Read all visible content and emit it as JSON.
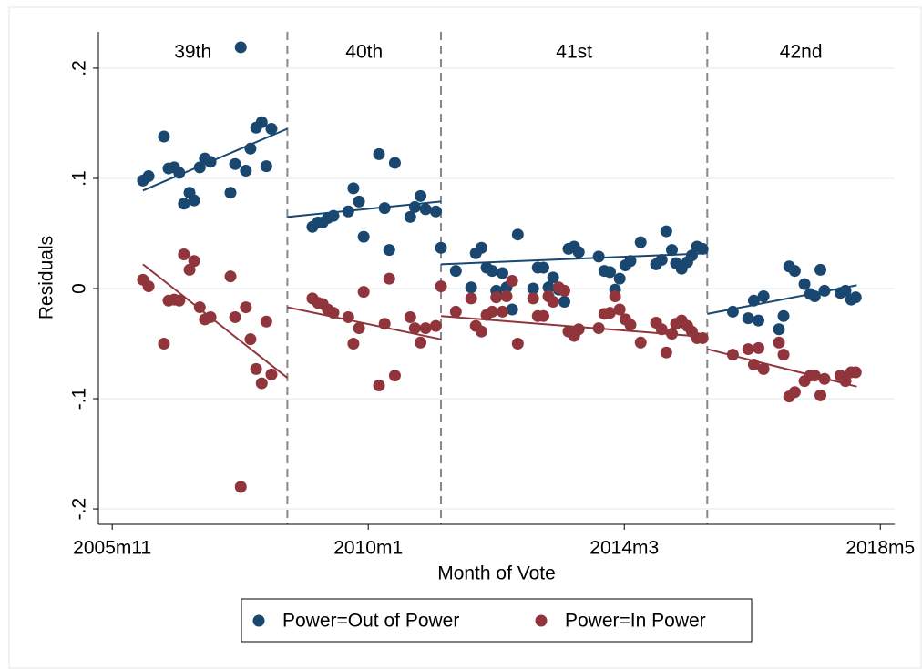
{
  "chart_data": {
    "type": "scatter",
    "x_label": "Month of Vote",
    "y_label": "Residuals",
    "xlim": [
      547.3,
      702.8
    ],
    "ylim": [
      -0.214,
      0.233
    ],
    "xticks": [
      {
        "value": 550,
        "label": "2005m11"
      },
      {
        "value": 600,
        "label": "2010m1"
      },
      {
        "value": 650,
        "label": "2014m3"
      },
      {
        "value": 700,
        "label": "2018m5"
      }
    ],
    "yticks": [
      {
        "value": -0.2,
        "label": "-.2"
      },
      {
        "value": -0.1,
        "label": "-.1"
      },
      0,
      {
        "value": 0.1,
        "label": ".1"
      },
      {
        "value": 0.2,
        "label": ".2"
      }
    ],
    "grid": true,
    "dividers": [
      584.2,
      614.2,
      666.2
    ],
    "periods": [
      "39th",
      "40th",
      "41st",
      "42nd"
    ],
    "legend": "bottom",
    "series": [
      {
        "name": "Power=Out of Power",
        "color": "#1a476f",
        "x": [
          556.0,
          557.1,
          560.1,
          561.0,
          562.1,
          563.1,
          564.0,
          565.1,
          566.0,
          567.1,
          568.1,
          569.2,
          573.1,
          574.0,
          575.1,
          576.1,
          577.0,
          578.1,
          579.2,
          580.1,
          581.1,
          589.1,
          590.2,
          591.1,
          592.1,
          593.2,
          596.1,
          597.1,
          598.2,
          599.1,
          602.1,
          603.2,
          604.1,
          605.2,
          608.2,
          609.1,
          610.2,
          611.2,
          613.2,
          614.2,
          617.1,
          620.1,
          621.0,
          622.1,
          623.1,
          624.2,
          625.0,
          626.2,
          627.0,
          628.1,
          629.2,
          632.2,
          633.1,
          634.2,
          635.2,
          636.1,
          637.2,
          638.3,
          639.1,
          640.2,
          641.1,
          645.0,
          646.1,
          647.2,
          648.2,
          649.1,
          650.2,
          651.2,
          653.2,
          656.2,
          657.3,
          658.2,
          659.3,
          660.1,
          661.2,
          662.3,
          663.2,
          664.2,
          665.3,
          671.2,
          674.2,
          675.3,
          676.2,
          677.2,
          680.2,
          681.1,
          682.2,
          683.3,
          685.2,
          686.3,
          687.2,
          688.3,
          689.1,
          692.2,
          693.2,
          694.3,
          695.2
        ],
        "values": [
          0.098,
          0.102,
          0.138,
          0.109,
          0.11,
          0.105,
          0.077,
          0.087,
          0.08,
          0.11,
          0.118,
          0.115,
          0.087,
          0.113,
          0.219,
          0.107,
          0.127,
          0.146,
          0.151,
          0.111,
          0.145,
          0.056,
          0.06,
          0.06,
          0.064,
          0.066,
          0.07,
          0.091,
          0.079,
          0.047,
          0.122,
          0.073,
          0.035,
          0.114,
          0.065,
          0.074,
          0.084,
          0.072,
          0.07,
          0.037,
          0.016,
          0.001,
          0.032,
          0.037,
          0.019,
          0.016,
          -0.002,
          0.014,
          0.001,
          -0.019,
          0.049,
          0,
          0.019,
          0.019,
          0.001,
          0.01,
          -0.001,
          -0.012,
          0.036,
          0.038,
          0.033,
          0.029,
          0.016,
          0.015,
          -0.001,
          0.009,
          0.021,
          0.025,
          0.042,
          0.022,
          0.026,
          0.052,
          0.035,
          0.023,
          0.018,
          0.024,
          0.03,
          0.038,
          0.036,
          -0.021,
          -0.027,
          -0.011,
          -0.029,
          -0.007,
          -0.037,
          -0.025,
          0.02,
          0.016,
          0.004,
          -0.005,
          -0.007,
          0.017,
          -0.002,
          -0.004,
          -0.002,
          -0.01,
          -0.008
        ],
        "fits": [
          {
            "x": [
              556.0,
              584.2
            ],
            "y": [
              0.089,
              0.145
            ]
          },
          {
            "x": [
              584.2,
              614.2
            ],
            "y": [
              0.065,
              0.079
            ]
          },
          {
            "x": [
              614.2,
              666.2
            ],
            "y": [
              0.022,
              0.032
            ]
          },
          {
            "x": [
              666.2,
              695.4
            ],
            "y": [
              -0.023,
              0.003
            ]
          }
        ]
      },
      {
        "name": "Power=In Power",
        "color": "#90353b",
        "x": [
          556.0,
          557.1,
          560.1,
          561.0,
          562.1,
          563.1,
          564.0,
          565.1,
          566.0,
          567.1,
          568.1,
          569.2,
          573.1,
          574.0,
          575.1,
          576.1,
          577.0,
          578.1,
          579.2,
          580.1,
          581.1,
          589.1,
          590.2,
          591.1,
          592.1,
          593.2,
          596.1,
          597.1,
          598.2,
          599.1,
          602.1,
          603.2,
          604.1,
          605.2,
          608.2,
          609.1,
          610.2,
          611.2,
          613.2,
          614.2,
          617.1,
          620.1,
          621.0,
          622.1,
          623.1,
          624.2,
          625.0,
          626.2,
          627.0,
          628.1,
          629.2,
          632.2,
          633.1,
          634.2,
          635.2,
          636.1,
          637.2,
          638.3,
          639.1,
          640.2,
          641.1,
          645.0,
          646.1,
          647.2,
          648.2,
          649.1,
          650.2,
          651.2,
          653.2,
          656.2,
          657.3,
          658.2,
          659.3,
          660.1,
          661.2,
          662.3,
          663.2,
          664.2,
          665.3,
          671.2,
          674.2,
          675.3,
          676.2,
          677.2,
          680.2,
          681.1,
          682.2,
          683.3,
          685.2,
          686.3,
          687.2,
          688.3,
          689.1,
          692.2,
          693.2,
          694.3,
          695.2
        ],
        "values": [
          0.008,
          0.002,
          -0.05,
          -0.011,
          -0.01,
          -0.011,
          0.031,
          0.017,
          0.025,
          -0.017,
          -0.028,
          -0.026,
          0.011,
          -0.026,
          -0.18,
          -0.017,
          -0.046,
          -0.073,
          -0.086,
          -0.03,
          -0.078,
          -0.009,
          -0.013,
          -0.014,
          -0.019,
          -0.022,
          -0.026,
          -0.05,
          -0.036,
          -0.003,
          -0.088,
          -0.032,
          0.009,
          -0.079,
          -0.026,
          -0.036,
          -0.049,
          -0.036,
          -0.034,
          0.002,
          -0.021,
          -0.009,
          -0.034,
          -0.039,
          -0.024,
          -0.021,
          -0.008,
          -0.021,
          -0.007,
          0.007,
          -0.05,
          -0.009,
          -0.025,
          -0.025,
          -0.007,
          -0.012,
          0.001,
          -0.002,
          -0.039,
          -0.043,
          -0.037,
          -0.036,
          -0.023,
          -0.022,
          -0.007,
          -0.019,
          -0.028,
          -0.033,
          -0.049,
          -0.031,
          -0.037,
          -0.058,
          -0.041,
          -0.032,
          -0.029,
          -0.034,
          -0.039,
          -0.045,
          -0.045,
          -0.06,
          -0.055,
          -0.069,
          -0.054,
          -0.073,
          -0.049,
          -0.06,
          -0.098,
          -0.094,
          -0.084,
          -0.079,
          -0.079,
          -0.097,
          -0.082,
          -0.079,
          -0.084,
          -0.076,
          -0.076
        ],
        "fits": [
          {
            "x": [
              556.0,
              584.2
            ],
            "y": [
              0.022,
              -0.081
            ]
          },
          {
            "x": [
              584.2,
              614.2
            ],
            "y": [
              -0.017,
              -0.046
            ]
          },
          {
            "x": [
              614.2,
              666.2
            ],
            "y": [
              -0.025,
              -0.044
            ]
          },
          {
            "x": [
              666.2,
              695.4
            ],
            "y": [
              -0.055,
              -0.089
            ]
          }
        ]
      }
    ]
  }
}
